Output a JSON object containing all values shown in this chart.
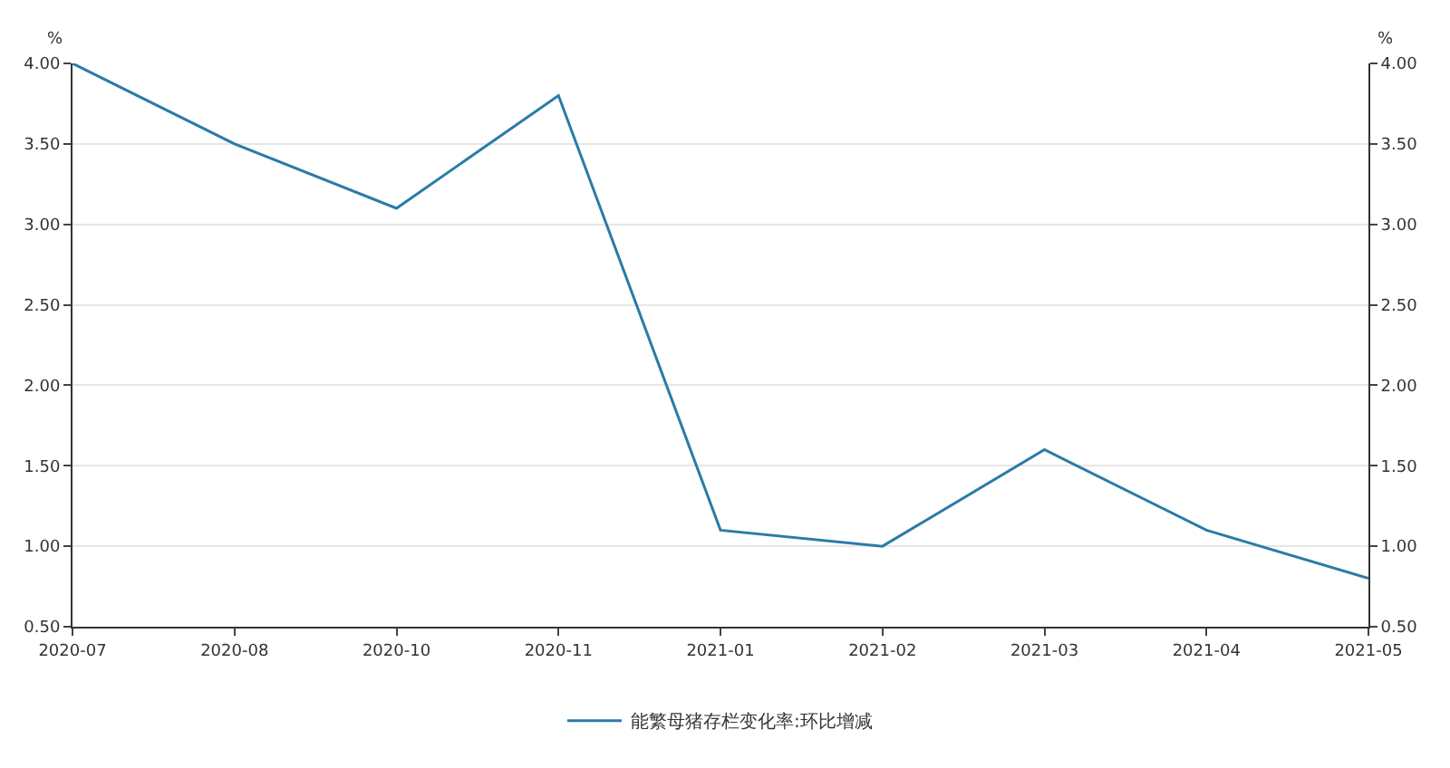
{
  "chart_data": {
    "type": "line",
    "ylabel": "%",
    "y2label": "%",
    "categories": [
      "2020-07",
      "2020-08",
      "2020-10",
      "2020-11",
      "2021-01",
      "2021-02",
      "2021-03",
      "2021-04",
      "2021-05"
    ],
    "series": [
      {
        "name": "能繁母猪存栏变化率:环比增减",
        "color": "#2a7ba8",
        "values": [
          4.0,
          3.5,
          3.1,
          3.8,
          1.1,
          1.0,
          1.6,
          1.1,
          0.8
        ]
      }
    ],
    "ylim": [
      0.5,
      4.0
    ],
    "yticks": [
      {
        "value": 0.5,
        "label": "0.50"
      },
      {
        "value": 1.0,
        "label": "1.00"
      },
      {
        "value": 1.5,
        "label": "1.50"
      },
      {
        "value": 2.0,
        "label": "2.00"
      },
      {
        "value": 2.5,
        "label": "2.50"
      },
      {
        "value": 3.0,
        "label": "3.00"
      },
      {
        "value": 3.5,
        "label": "3.50"
      },
      {
        "value": 4.0,
        "label": "4.00"
      }
    ],
    "y2lim": [
      0.5,
      4.0
    ],
    "y2ticks": [
      {
        "value": 0.5,
        "label": "0.50"
      },
      {
        "value": 1.0,
        "label": "1.00"
      },
      {
        "value": 1.5,
        "label": "1.50"
      },
      {
        "value": 2.0,
        "label": "2.00"
      },
      {
        "value": 2.5,
        "label": "2.50"
      },
      {
        "value": 3.0,
        "label": "3.00"
      },
      {
        "value": 3.5,
        "label": "3.50"
      },
      {
        "value": 4.0,
        "label": "4.00"
      }
    ],
    "grid": "y",
    "legend": "bottom",
    "marker": "none",
    "line_style": "solid"
  }
}
